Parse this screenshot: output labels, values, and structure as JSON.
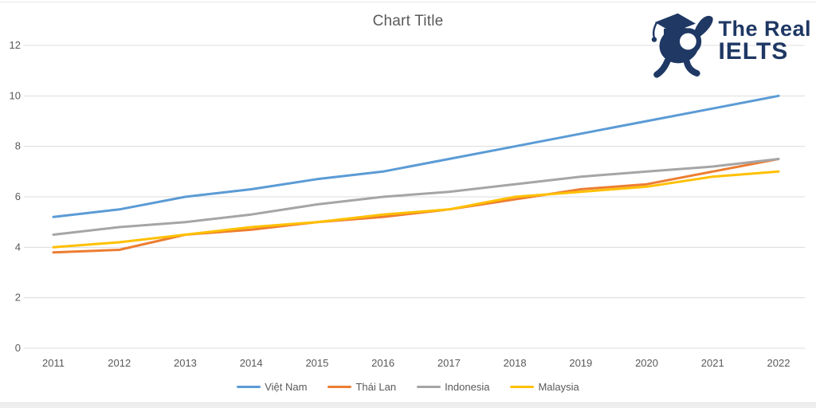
{
  "page": {
    "title": "Chart Title"
  },
  "logo": {
    "line1": "The Real",
    "line2": "IELTS",
    "color": "#1f3864",
    "icon": "graduate-mascot-with-lens"
  },
  "chart_data": {
    "type": "line",
    "title": "Chart Title",
    "categories": [
      "2011",
      "2012",
      "2013",
      "2014",
      "2015",
      "2016",
      "2017",
      "2018",
      "2019",
      "2020",
      "2021",
      "2022"
    ],
    "series": [
      {
        "name": "Việt Nam",
        "color": "#5B9BD5",
        "values": [
          5.2,
          5.5,
          6.0,
          6.3,
          6.7,
          7.0,
          7.5,
          8.0,
          8.5,
          9.0,
          9.5,
          10.0
        ]
      },
      {
        "name": "Thái Lan",
        "color": "#ED7D31",
        "values": [
          3.8,
          3.9,
          4.5,
          4.7,
          5.0,
          5.2,
          5.5,
          5.9,
          6.3,
          6.5,
          7.0,
          7.5
        ]
      },
      {
        "name": "Indonesia",
        "color": "#A5A5A5",
        "values": [
          4.5,
          4.8,
          5.0,
          5.3,
          5.7,
          6.0,
          6.2,
          6.5,
          6.8,
          7.0,
          7.2,
          7.5
        ]
      },
      {
        "name": "Malaysia",
        "color": "#FFC000",
        "values": [
          4.0,
          4.2,
          4.5,
          4.8,
          5.0,
          5.3,
          5.5,
          6.0,
          6.2,
          6.4,
          6.8,
          7.0
        ]
      }
    ],
    "xlabel": "",
    "ylabel": "",
    "ylim": [
      0,
      12
    ],
    "ytick_step": 2,
    "grid": true,
    "gridline_color": "#dcdcdc",
    "axis_label_color": "#595959",
    "legend_position": "bottom",
    "line_width": 3
  }
}
